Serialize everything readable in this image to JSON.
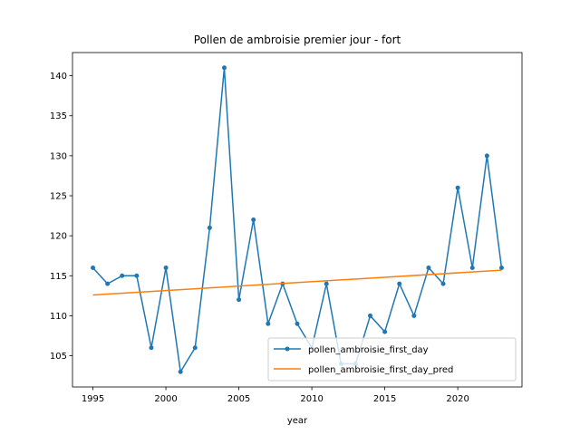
{
  "chart_data": {
    "type": "line",
    "title": "Pollen de ambroisie premier jour - fort",
    "xlabel": "year",
    "ylabel": "",
    "xlim": [
      1993.6,
      2024.4
    ],
    "ylim": [
      101.1,
      142.9
    ],
    "xticks": [
      1995,
      2000,
      2005,
      2010,
      2015,
      2020
    ],
    "yticks": [
      105,
      110,
      115,
      120,
      125,
      130,
      135,
      140
    ],
    "grid": false,
    "legend_position": "lower-right",
    "series": [
      {
        "name": "pollen_ambroisie_first_day",
        "color": "#1f77b4",
        "marker": "circle",
        "x": [
          1995,
          1996,
          1997,
          1998,
          1999,
          2000,
          2001,
          2002,
          2003,
          2004,
          2005,
          2006,
          2007,
          2008,
          2009,
          2010,
          2011,
          2012,
          2013,
          2014,
          2015,
          2016,
          2017,
          2018,
          2019,
          2020,
          2021,
          2022,
          2023
        ],
        "y": [
          116,
          114,
          115,
          115,
          106,
          116,
          103,
          106,
          121,
          141,
          112,
          122,
          109,
          114,
          109,
          106,
          114,
          104,
          104,
          110,
          108,
          114,
          110,
          116,
          114,
          126,
          116,
          130,
          116
        ]
      },
      {
        "name": "pollen_ambroisie_first_day_pred",
        "color": "#ff7f0e",
        "marker": "none",
        "x": [
          1995,
          2023
        ],
        "y": [
          112.6,
          115.7
        ]
      }
    ]
  }
}
